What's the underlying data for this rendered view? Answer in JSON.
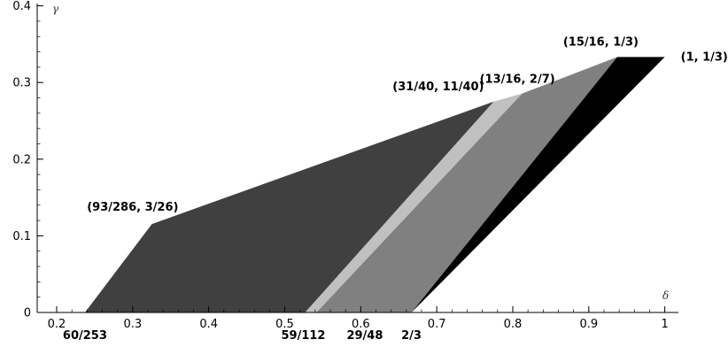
{
  "chart_data": {
    "type": "area",
    "title": "",
    "xlabel": "δ",
    "ylabel": "γ",
    "xlim": [
      0.18,
      1.015
    ],
    "ylim": [
      0,
      0.4
    ],
    "x_ticks": [
      "0.2",
      "0.3",
      "0.4",
      "0.5",
      "0.6",
      "0.7",
      "0.8",
      "0.9",
      "1"
    ],
    "y_ticks": [
      "0",
      "0.1",
      "0.2",
      "0.3",
      "0.4"
    ],
    "grid": false,
    "regions": [
      {
        "color": "#404040",
        "points": [
          [
            0.2372,
            0
          ],
          [
            0.3252,
            0.1154
          ],
          [
            0.775,
            0.275
          ],
          [
            0.5268,
            0
          ]
        ]
      },
      {
        "color": "#c0c0c0",
        "points": [
          [
            0.5268,
            0
          ],
          [
            0.775,
            0.275
          ],
          [
            0.8125,
            0.2857
          ],
          [
            0.5417,
            0
          ]
        ]
      },
      {
        "color": "#808080",
        "points": [
          [
            0.5417,
            0
          ],
          [
            0.8125,
            0.2857
          ],
          [
            0.9375,
            0.3333
          ],
          [
            0.6667,
            0
          ]
        ]
      },
      {
        "color": "#000000",
        "points": [
          [
            0.6667,
            0
          ],
          [
            0.9375,
            0.3333
          ],
          [
            1.0,
            0.3333
          ],
          [
            0.6667,
            0
          ]
        ]
      }
    ],
    "point_labels": [
      {
        "text": "(93/286, 3/26)",
        "x": 0.3252,
        "y": 0.1154
      },
      {
        "text": "(31/40, 11/40)",
        "x": 0.775,
        "y": 0.275
      },
      {
        "text": "(13/16, 2/7)",
        "x": 0.8125,
        "y": 0.2857
      },
      {
        "text": "(15/16, 1/3)",
        "x": 0.9375,
        "y": 0.3333
      },
      {
        "text": "(1, 1/3)",
        "x": 1.0,
        "y": 0.3333
      }
    ],
    "axis_labels": [
      {
        "text": "60/253",
        "x": 0.2372
      },
      {
        "text": "59/112",
        "x": 0.5268
      },
      {
        "text": "29/48",
        "x": 0.6042
      },
      {
        "text": "2/3",
        "x": 0.6667
      }
    ]
  }
}
